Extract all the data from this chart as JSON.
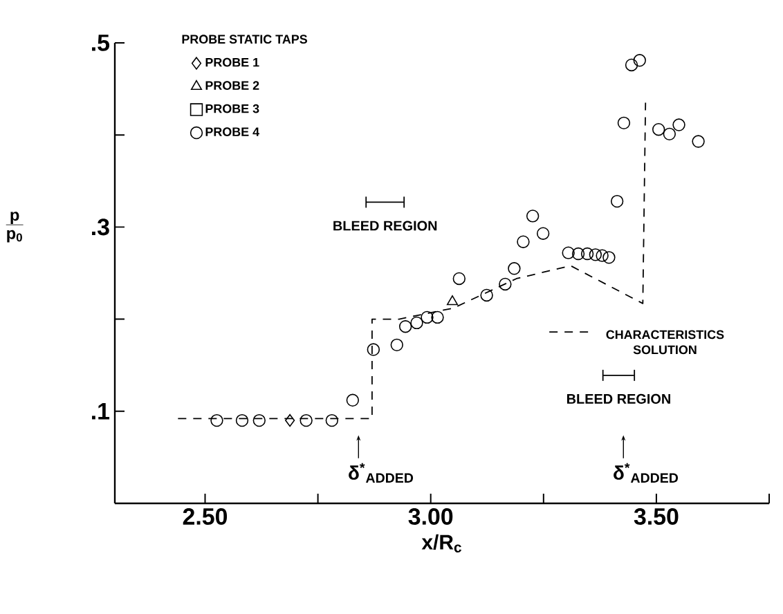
{
  "chart_data": {
    "type": "scatter",
    "xlabel": "x/R$_{c}$",
    "ylabel": "\\frac{\\mathsf{\\mathbf{p}}}{\\mathsf{\\mathbf{p_0}}}",
    "legend_title": "PROBE STATIC TAPS",
    "xlim": [
      2.3,
      3.75
    ],
    "ylim": [
      0,
      0.5
    ],
    "xticks": [
      {
        "value": 2.5,
        "label": "2.50"
      },
      {
        "value": 2.75,
        "label": null
      },
      {
        "value": 3.0,
        "label": "3.00"
      },
      {
        "value": 3.25,
        "label": null
      },
      {
        "value": 3.5,
        "label": "3.50"
      },
      {
        "value": 3.75,
        "label": null
      }
    ],
    "yticks": [
      {
        "value": 0.1,
        "label": ".1"
      },
      {
        "value": 0.2,
        "label": null
      },
      {
        "value": 0.3,
        "label": ".3"
      },
      {
        "value": 0.4,
        "label": null
      },
      {
        "value": 0.5,
        "label": ".5"
      }
    ],
    "legend": "top left",
    "grid": false,
    "series": [
      {
        "name": "PROBE 1",
        "color": "#000000",
        "marker": "diamond",
        "x": [
          2.688
        ],
        "values": [
          0.09
        ]
      },
      {
        "name": "PROBE 2",
        "color": "#000000",
        "marker": "triangle",
        "x": [
          3.048
        ],
        "values": [
          0.219
        ]
      },
      {
        "name": "PROBE 3",
        "color": "#000000",
        "marker": "square"
      },
      {
        "name": "PROBE 4",
        "color": "#000000",
        "marker": "circle",
        "x": [
          2.526,
          2.582,
          2.62,
          2.724,
          2.781,
          2.827,
          2.873,
          2.925,
          2.944,
          2.969,
          2.992,
          3.015,
          3.063,
          3.124,
          3.165,
          3.185,
          3.205,
          3.226,
          3.249,
          3.305,
          3.327,
          3.347,
          3.365,
          3.38,
          3.395,
          3.413,
          3.428,
          3.445,
          3.463,
          3.505,
          3.529,
          3.55,
          3.593
        ],
        "values": [
          0.09,
          0.09,
          0.09,
          0.09,
          0.09,
          0.112,
          0.167,
          0.172,
          0.192,
          0.196,
          0.202,
          0.202,
          0.244,
          0.226,
          0.238,
          0.255,
          0.284,
          0.312,
          0.293,
          0.272,
          0.271,
          0.271,
          0.27,
          0.269,
          0.267,
          0.328,
          0.413,
          0.476,
          0.481,
          0.406,
          0.401,
          0.411,
          0.393
        ]
      },
      {
        "name": "CHARACTERISTICS SOLUTION",
        "type": "line",
        "color": "#000000",
        "marker": "none",
        "line_style": "dashed",
        "x": [
          2.44,
          2.87,
          2.87,
          2.93,
          3.05,
          3.19,
          3.31,
          3.47,
          3.476
        ],
        "values": [
          0.092,
          0.092,
          0.2,
          0.2,
          0.212,
          0.244,
          0.258,
          0.217,
          0.435
        ]
      }
    ],
    "annotations": [
      "BLEED REGION",
      "BLEED REGION",
      {
        "text": "δ$^{*}$$_{ADDED}$",
        "x": 2.84,
        "y": 0.074
      },
      {
        "text": "δ$^{*}$$_{ADDED}$",
        "x": 3.427,
        "y": 0.074
      }
    ]
  }
}
